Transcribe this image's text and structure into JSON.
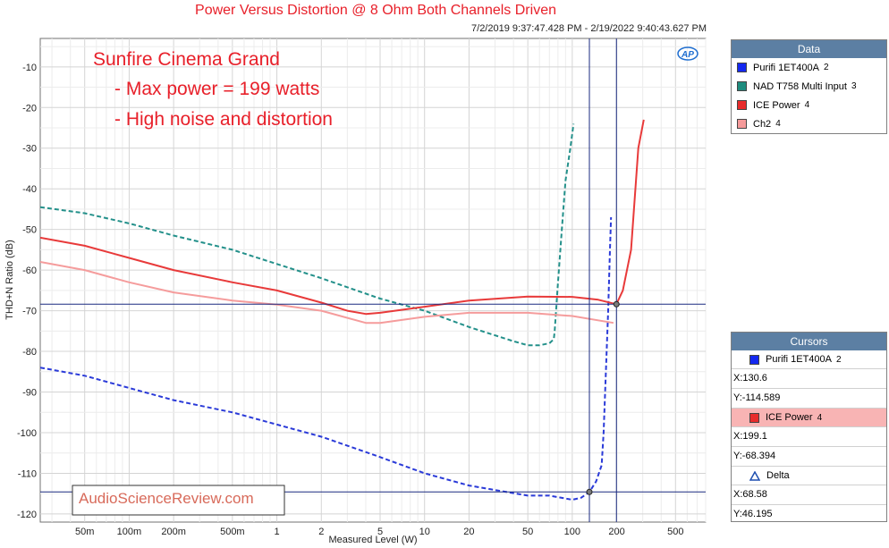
{
  "title": "Power Versus Distortion @ 8 Ohm Both Channels Driven",
  "timestamp": "7/2/2019 9:37:47.428 PM - 2/19/2022 9:40:43.627 PM",
  "annotation": {
    "line1": "Sunfire Cinema Grand",
    "line2": "- Max power = 199 watts",
    "line3": "- High noise and distortion",
    "color": "#e8202a"
  },
  "watermark": "AudioScienceReview.com",
  "logo_text": "AP",
  "data_panel": {
    "header": "Data",
    "items": [
      {
        "label": "Purifi 1ET400A",
        "channel": "2",
        "color": "#1428f0"
      },
      {
        "label": "NAD T758 Multi Input",
        "channel": "3",
        "color": "#1e8c7e"
      },
      {
        "label": "ICE Power",
        "channel": "4",
        "color": "#e82c2c"
      },
      {
        "label": "Ch2",
        "channel": "4",
        "color": "#f59a9a"
      }
    ]
  },
  "cursors_panel": {
    "header": "Cursors",
    "cursor1": {
      "label": "Purifi 1ET400A",
      "channel": "2",
      "color": "#1428f0",
      "x": "X:130.6",
      "y": "Y:-114.589"
    },
    "cursor2": {
      "label": "ICE Power",
      "channel": "4",
      "color": "#e82c2c",
      "x": "X:199.1",
      "y": "Y:-68.394"
    },
    "delta": {
      "label": "Delta",
      "x": "X:68.58",
      "y": "Y:46.195"
    }
  },
  "chart_data": {
    "type": "line",
    "xlabel": "Measured Level (W)",
    "ylabel": "THD+N Ratio (dB)",
    "xscale": "log",
    "xlim": [
      0.025,
      800
    ],
    "ylim": [
      -122,
      -3
    ],
    "xticks": [
      0.05,
      0.1,
      0.2,
      0.5,
      1,
      2,
      5,
      10,
      20,
      50,
      100,
      200,
      500
    ],
    "xtick_labels": [
      "50m",
      "100m",
      "200m",
      "500m",
      "1",
      "2",
      "5",
      "10",
      "20",
      "50",
      "100",
      "200",
      "500"
    ],
    "yticks": [
      -10,
      -20,
      -30,
      -40,
      -50,
      -60,
      -70,
      -80,
      -90,
      -100,
      -110,
      -120
    ],
    "ytick_labels": [
      "-10",
      "-20",
      "-30",
      "-40",
      "-50",
      "-60",
      "-70",
      "-80",
      "-90",
      "-100",
      "-110",
      "-120"
    ],
    "grid": true,
    "cursors": [
      {
        "x": 130.6,
        "y": -114.589
      },
      {
        "x": 199.1,
        "y": -68.394
      }
    ],
    "series": [
      {
        "name": "Purifi 1ET400A",
        "color": "#2a3ad8",
        "dash": true,
        "points": [
          [
            0.025,
            -84
          ],
          [
            0.05,
            -86
          ],
          [
            0.1,
            -89
          ],
          [
            0.2,
            -92
          ],
          [
            0.5,
            -95
          ],
          [
            1,
            -98
          ],
          [
            2,
            -101
          ],
          [
            5,
            -106
          ],
          [
            10,
            -110
          ],
          [
            20,
            -113
          ],
          [
            50,
            -115.5
          ],
          [
            70,
            -115.5
          ],
          [
            100,
            -116.5
          ],
          [
            115,
            -116
          ],
          [
            130.6,
            -114.6
          ],
          [
            145,
            -112
          ],
          [
            158,
            -108
          ],
          [
            163,
            -100
          ],
          [
            167,
            -90
          ],
          [
            171,
            -80
          ],
          [
            175,
            -70
          ],
          [
            180,
            -55
          ],
          [
            183,
            -47
          ]
        ]
      },
      {
        "name": "NAD T758 Multi Input",
        "color": "#23908a",
        "dash": true,
        "points": [
          [
            0.025,
            -44.5
          ],
          [
            0.05,
            -46
          ],
          [
            0.1,
            -48.5
          ],
          [
            0.2,
            -51.5
          ],
          [
            0.5,
            -55
          ],
          [
            1,
            -58.5
          ],
          [
            2,
            -62
          ],
          [
            5,
            -67
          ],
          [
            10,
            -70
          ],
          [
            20,
            -74
          ],
          [
            40,
            -77.5
          ],
          [
            50,
            -78.5
          ],
          [
            60,
            -78.5
          ],
          [
            70,
            -78
          ],
          [
            75,
            -77
          ],
          [
            76,
            -75
          ],
          [
            80,
            -63
          ],
          [
            85,
            -50
          ],
          [
            90,
            -38
          ],
          [
            97,
            -30
          ],
          [
            102,
            -24
          ]
        ]
      },
      {
        "name": "ICE Power",
        "color": "#e83a3a",
        "dash": false,
        "points": [
          [
            0.025,
            -52
          ],
          [
            0.05,
            -54
          ],
          [
            0.1,
            -57
          ],
          [
            0.2,
            -60
          ],
          [
            0.5,
            -63
          ],
          [
            1,
            -65
          ],
          [
            2,
            -68
          ],
          [
            3,
            -70
          ],
          [
            4,
            -70.8
          ],
          [
            5,
            -70.5
          ],
          [
            10,
            -69
          ],
          [
            20,
            -67.5
          ],
          [
            50,
            -66.5
          ],
          [
            100,
            -66.6
          ],
          [
            150,
            -67.3
          ],
          [
            199.1,
            -68.4
          ],
          [
            220,
            -65
          ],
          [
            250,
            -55
          ],
          [
            280,
            -30
          ],
          [
            305,
            -23
          ]
        ]
      },
      {
        "name": "Ch2",
        "color": "#f59c9c",
        "dash": false,
        "points": [
          [
            0.025,
            -58
          ],
          [
            0.05,
            -60
          ],
          [
            0.1,
            -63
          ],
          [
            0.2,
            -65.5
          ],
          [
            0.5,
            -67.5
          ],
          [
            1,
            -68.5
          ],
          [
            2,
            -70
          ],
          [
            4,
            -73
          ],
          [
            5,
            -73
          ],
          [
            10,
            -71.5
          ],
          [
            20,
            -70.5
          ],
          [
            50,
            -70.5
          ],
          [
            100,
            -71.3
          ],
          [
            190,
            -73
          ]
        ]
      }
    ]
  }
}
